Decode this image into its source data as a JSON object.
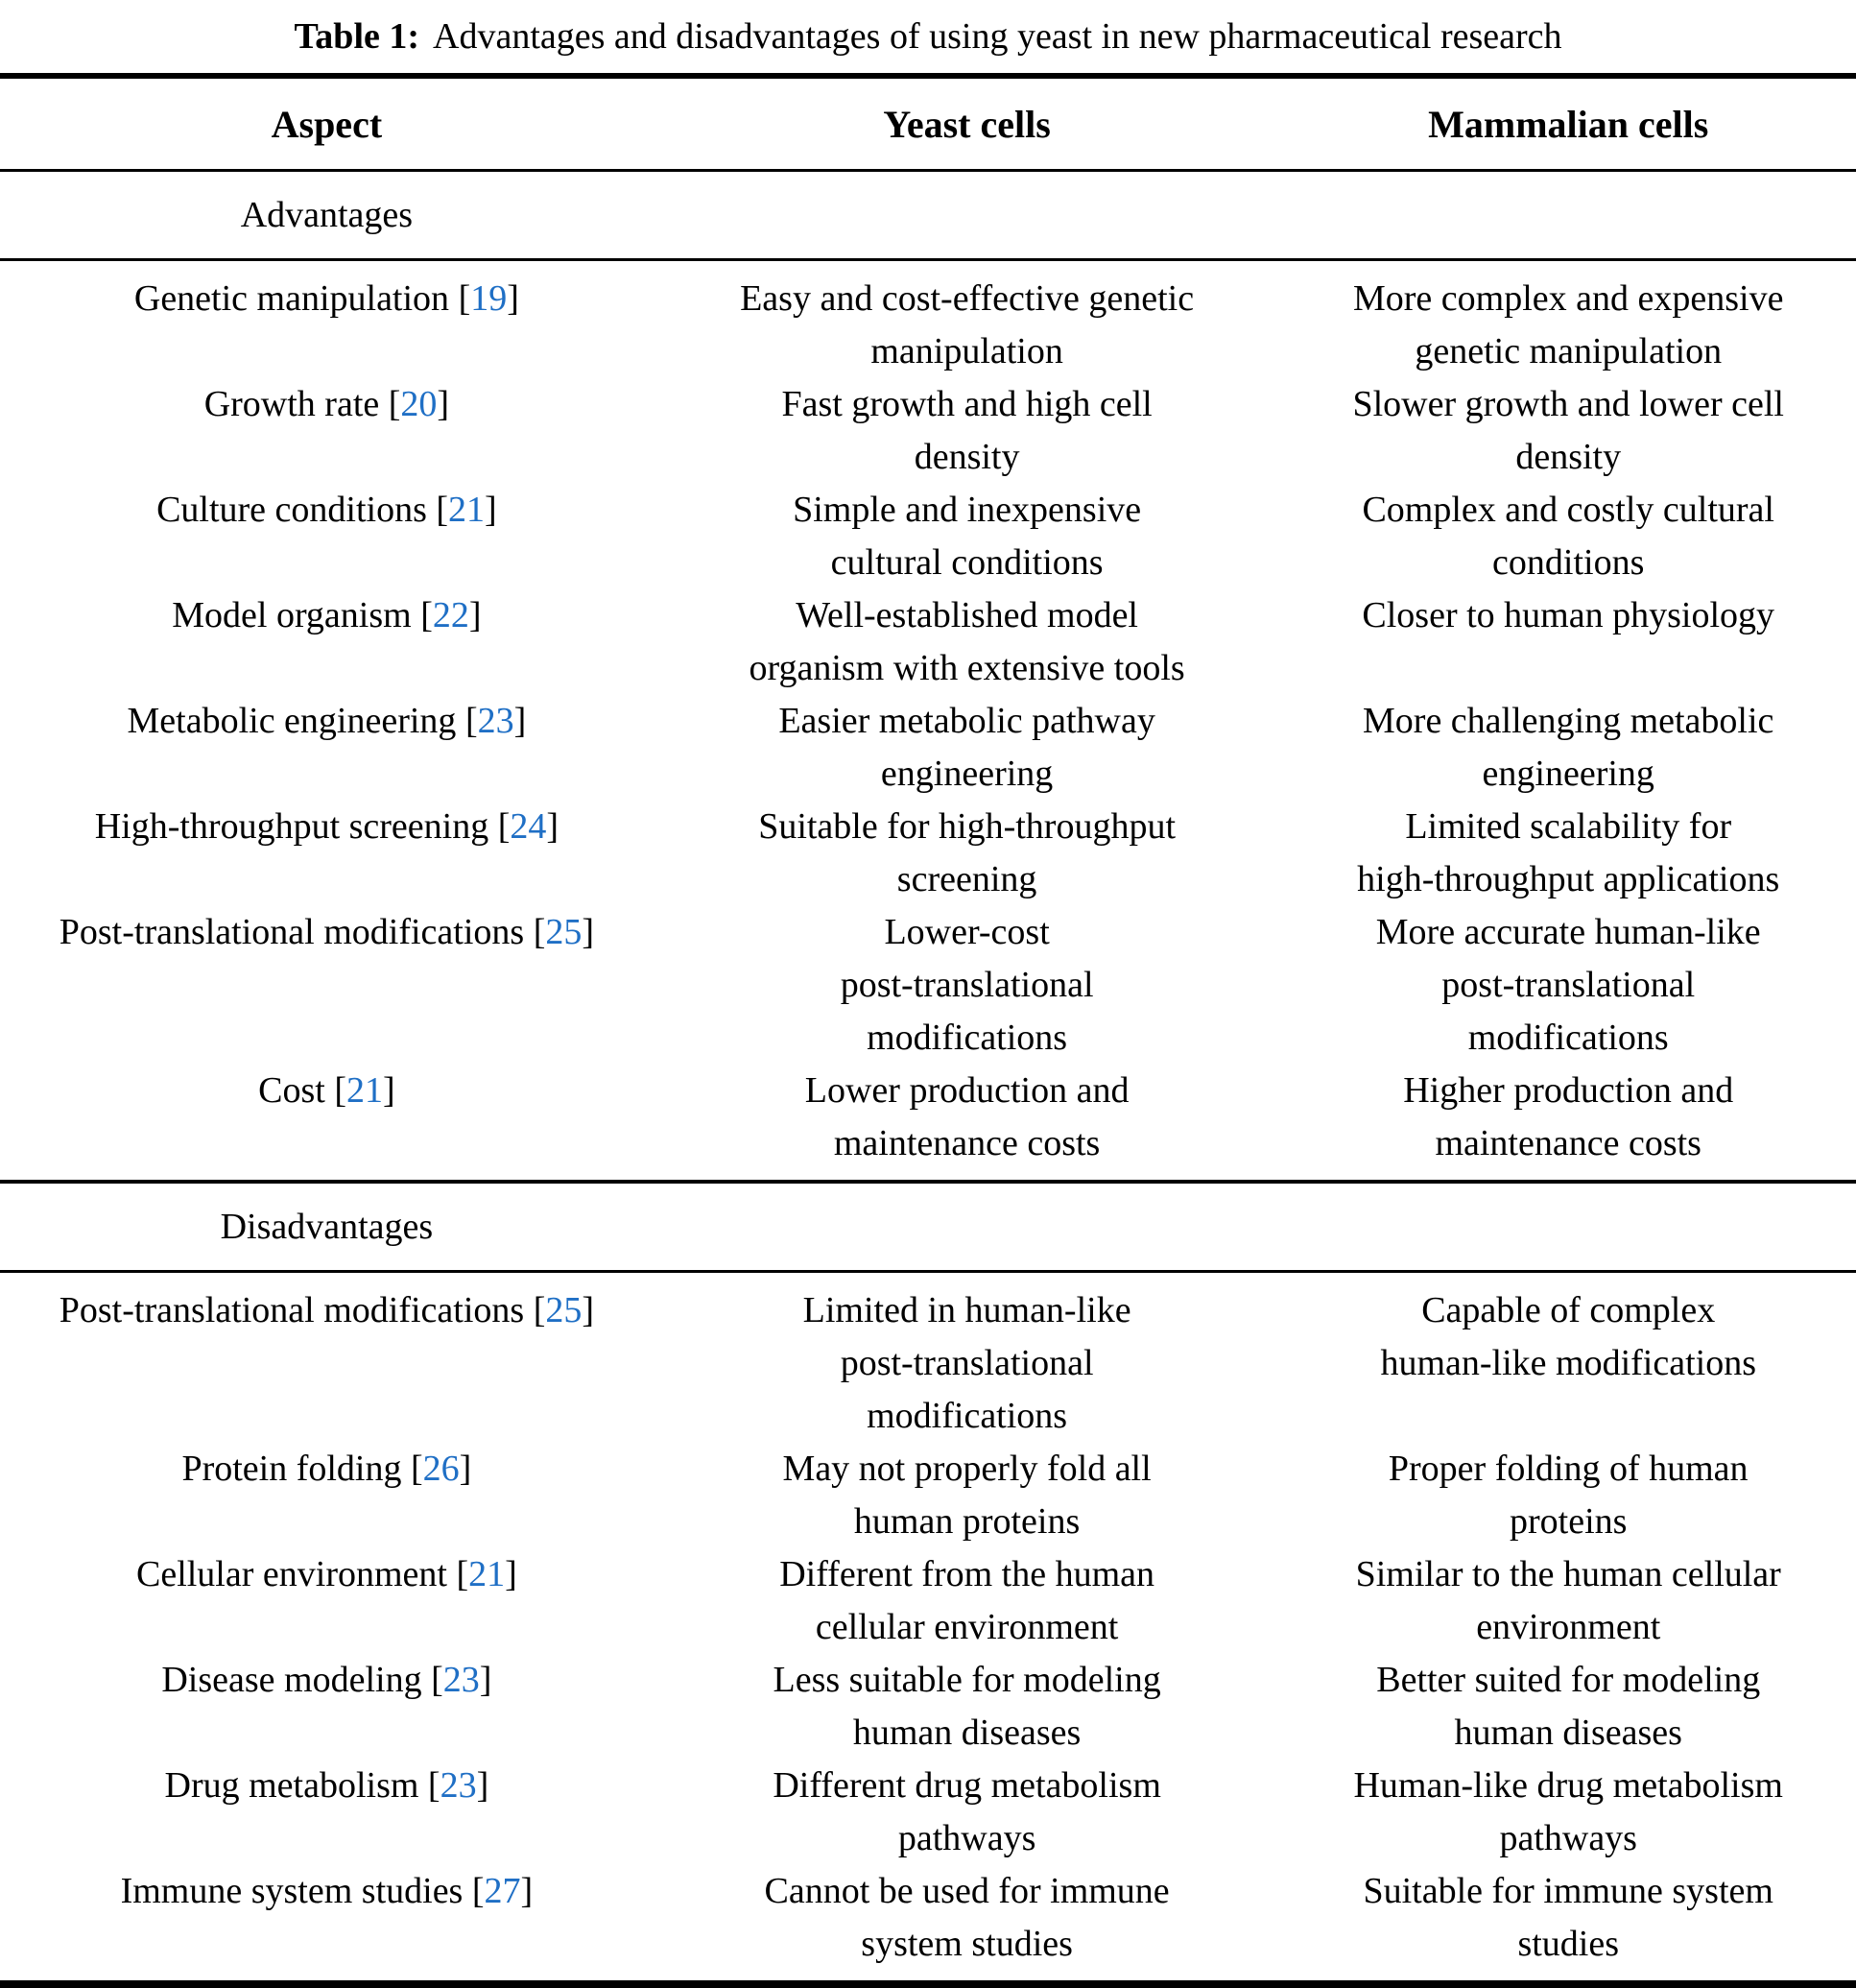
{
  "title": {
    "label": "Table 1:",
    "text": "Advantages and disadvantages of using yeast in new pharmaceutical research"
  },
  "colors": {
    "citation_blue": "#1f6fc5",
    "text": "#000000",
    "background": "#ffffff"
  },
  "table": {
    "columns": [
      "Aspect",
      "Yeast cells",
      "Mammalian cells"
    ],
    "sections": [
      {
        "header": "Advantages",
        "rows": [
          {
            "aspect": "Genetic manipulation",
            "cite": "19",
            "yeast": [
              "Easy and cost-effective genetic",
              "manipulation"
            ],
            "mammalian": [
              "More complex and expensive",
              "genetic manipulation"
            ]
          },
          {
            "aspect": "Growth rate",
            "cite": "20",
            "yeast": [
              "Fast growth and high cell",
              "density"
            ],
            "mammalian": [
              "Slower growth and lower cell",
              "density"
            ]
          },
          {
            "aspect": "Culture conditions",
            "cite": "21",
            "yeast": [
              "Simple and inexpensive",
              "cultural conditions"
            ],
            "mammalian": [
              "Complex and costly cultural",
              "conditions"
            ]
          },
          {
            "aspect": "Model organism",
            "cite": "22",
            "yeast": [
              "Well-established model",
              "organism with extensive tools"
            ],
            "mammalian": [
              "Closer to human physiology"
            ]
          },
          {
            "aspect": "Metabolic engineering",
            "cite": "23",
            "yeast": [
              "Easier metabolic pathway",
              "engineering"
            ],
            "mammalian": [
              "More challenging metabolic",
              "engineering"
            ]
          },
          {
            "aspect": "High-throughput screening",
            "cite": "24",
            "yeast": [
              "Suitable for high-throughput",
              "screening"
            ],
            "mammalian": [
              "Limited scalability for",
              "high-throughput applications"
            ]
          },
          {
            "aspect": "Post-translational modifications",
            "cite": "25",
            "yeast": [
              "Lower-cost",
              "post-translational",
              "modifications"
            ],
            "mammalian": [
              "More accurate human-like",
              "post-translational",
              "modifications"
            ]
          },
          {
            "aspect": "Cost",
            "cite": "21",
            "yeast": [
              "Lower production and",
              "maintenance costs"
            ],
            "mammalian": [
              "Higher production and",
              "maintenance costs"
            ]
          }
        ]
      },
      {
        "header": "Disadvantages",
        "rows": [
          {
            "aspect": "Post-translational modifications",
            "cite": "25",
            "yeast": [
              "Limited in human-like",
              "post-translational",
              "modifications"
            ],
            "mammalian": [
              "Capable of complex",
              "human-like modifications"
            ]
          },
          {
            "aspect": "Protein folding",
            "cite": "26",
            "yeast": [
              "May not properly fold all",
              "human proteins"
            ],
            "mammalian": [
              "Proper folding of human",
              "proteins"
            ]
          },
          {
            "aspect": "Cellular environment",
            "cite": "21",
            "yeast": [
              "Different from the human",
              "cellular environment"
            ],
            "mammalian": [
              "Similar to the human cellular",
              "environment"
            ]
          },
          {
            "aspect": "Disease modeling",
            "cite": "23",
            "yeast": [
              "Less suitable for modeling",
              "human diseases"
            ],
            "mammalian": [
              "Better suited for modeling",
              "human diseases"
            ]
          },
          {
            "aspect": "Drug metabolism",
            "cite": "23",
            "yeast": [
              "Different drug metabolism",
              "pathways"
            ],
            "mammalian": [
              "Human-like drug metabolism",
              "pathways"
            ]
          },
          {
            "aspect": "Immune system studies",
            "cite": "27",
            "yeast": [
              "Cannot be used for immune",
              "system studies"
            ],
            "mammalian": [
              "Suitable for immune system",
              "studies"
            ]
          }
        ]
      }
    ]
  }
}
